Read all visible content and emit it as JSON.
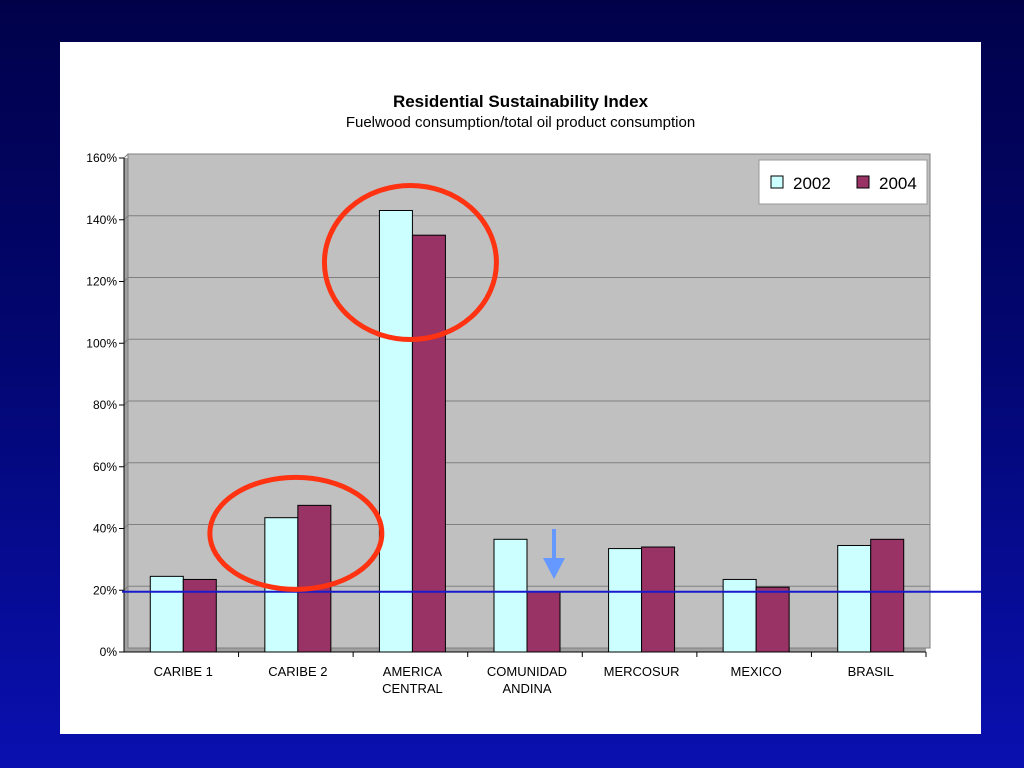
{
  "chart_data": {
    "type": "bar",
    "title": "Residential Sustainability Index",
    "subtitle": "Fuelwood consumption/total oil product consumption",
    "categories": [
      [
        "CARIBE 1"
      ],
      [
        "CARIBE 2"
      ],
      [
        "AMERICA",
        "CENTRAL"
      ],
      [
        "COMUNIDAD",
        "ANDINA"
      ],
      [
        "MERCOSUR"
      ],
      [
        "MEXICO"
      ],
      [
        "BRASIL"
      ]
    ],
    "series": [
      {
        "name": "2002",
        "color": "#ccffff",
        "values": [
          24.5,
          43.5,
          143,
          36.5,
          33.5,
          23.5,
          34.5
        ]
      },
      {
        "name": "2004",
        "color": "#993366",
        "values": [
          23.5,
          47.5,
          135,
          19.5,
          34,
          21,
          36.5
        ]
      }
    ],
    "ylim": [
      0,
      160
    ],
    "yticks": [
      "0%",
      "20%",
      "40%",
      "60%",
      "80%",
      "100%",
      "120%",
      "140%",
      "160%"
    ],
    "grid": true,
    "legend_position": "top-right",
    "reference_line": {
      "value": 19.5,
      "color": "#1a1acc"
    },
    "annotations": [
      {
        "type": "circle",
        "target": "CARIBE 2",
        "color": "#ff3311"
      },
      {
        "type": "circle",
        "target": "AMERICA CENTRAL",
        "color": "#ff3311"
      },
      {
        "type": "down-arrow",
        "target": "COMUNIDAD ANDINA",
        "color": "#6699ff"
      }
    ],
    "plot_background": "#c0c0c0"
  }
}
